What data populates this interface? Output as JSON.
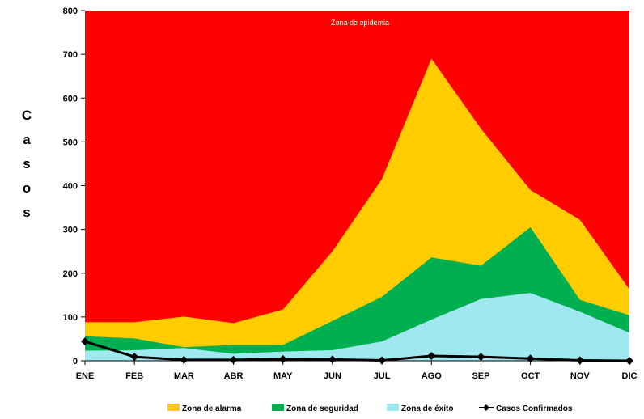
{
  "chart_data": {
    "type": "area",
    "title": "",
    "xlabel": "",
    "ylabel": "Casos",
    "ylim": [
      0,
      800
    ],
    "yticks": [
      0,
      100,
      200,
      300,
      400,
      500,
      600,
      700,
      800
    ],
    "categories": [
      "ENE",
      "FEB",
      "MAR",
      "ABR",
      "MAY",
      "JUN",
      "JUL",
      "AGO",
      "SEP",
      "OCT",
      "NOV",
      "DIC"
    ],
    "background_zone": {
      "name": "Zona de epidemia",
      "color": "#ff0000"
    },
    "series": [
      {
        "name": "Zona de alarma",
        "color": "#ffcc00",
        "values": [
          88,
          88,
          101,
          86,
          117,
          250,
          415,
          690,
          530,
          390,
          322,
          163
        ]
      },
      {
        "name": "Zona de seguridad",
        "color": "#00b050",
        "values": [
          56,
          51,
          31,
          36,
          36,
          91,
          146,
          236,
          217,
          305,
          139,
          104
        ]
      },
      {
        "name": "Zona de éxito",
        "color": "#a0e8f0",
        "values": [
          23,
          24,
          29,
          16,
          21,
          24,
          44,
          94,
          141,
          155,
          112,
          64
        ]
      }
    ],
    "line_series": {
      "name": "Casos Confirmados",
      "color": "#000000",
      "values": [
        44,
        9,
        2,
        2,
        4,
        3,
        1,
        11,
        9,
        5,
        1,
        0
      ]
    },
    "legend_position": "bottom",
    "grid": false
  }
}
